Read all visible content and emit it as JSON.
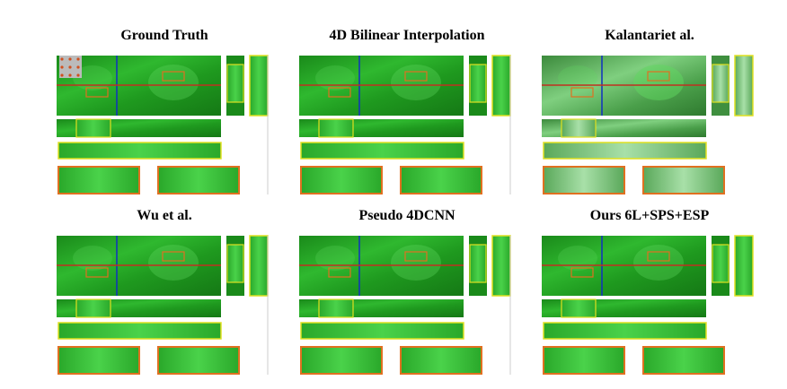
{
  "panels": [
    {
      "title": "Ground Truth"
    },
    {
      "title": "4D Bilinear Interpolation"
    },
    {
      "title": "Kalantariet al."
    },
    {
      "title": "Wu et al."
    },
    {
      "title": "Pseudo 4DCNN"
    },
    {
      "title": "Ours 6L+SPS+ESP"
    }
  ]
}
